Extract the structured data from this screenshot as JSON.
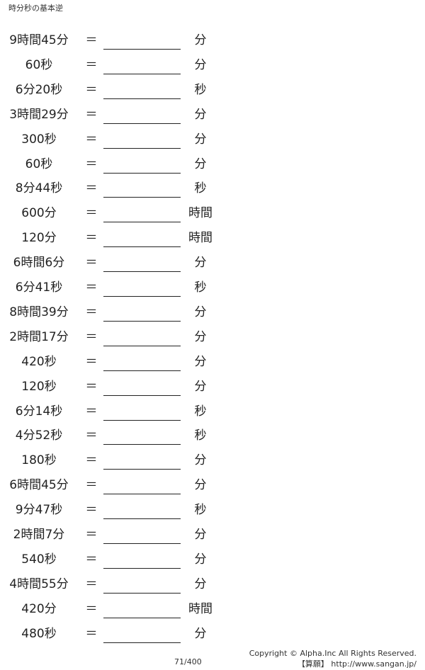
{
  "title": "時分秒の基本逆",
  "equals": "＝",
  "problems": [
    {
      "q": "9時間45分",
      "unit": "分"
    },
    {
      "q": "60秒",
      "unit": "分"
    },
    {
      "q": "6分20秒",
      "unit": "秒"
    },
    {
      "q": "3時間29分",
      "unit": "分"
    },
    {
      "q": "300秒",
      "unit": "分"
    },
    {
      "q": "60秒",
      "unit": "分"
    },
    {
      "q": "8分44秒",
      "unit": "秒"
    },
    {
      "q": "600分",
      "unit": "時間"
    },
    {
      "q": "120分",
      "unit": "時間"
    },
    {
      "q": "6時間6分",
      "unit": "分"
    },
    {
      "q": "6分41秒",
      "unit": "秒"
    },
    {
      "q": "8時間39分",
      "unit": "分"
    },
    {
      "q": "2時間17分",
      "unit": "分"
    },
    {
      "q": "420秒",
      "unit": "分"
    },
    {
      "q": "120秒",
      "unit": "分"
    },
    {
      "q": "6分14秒",
      "unit": "秒"
    },
    {
      "q": "4分52秒",
      "unit": "秒"
    },
    {
      "q": "180秒",
      "unit": "分"
    },
    {
      "q": "6時間45分",
      "unit": "分"
    },
    {
      "q": "9分47秒",
      "unit": "秒"
    },
    {
      "q": "2時間7分",
      "unit": "分"
    },
    {
      "q": "540秒",
      "unit": "分"
    },
    {
      "q": "4時間55分",
      "unit": "分"
    },
    {
      "q": "420分",
      "unit": "時間"
    },
    {
      "q": "480秒",
      "unit": "分"
    }
  ],
  "footer": {
    "page": "71/400",
    "copyright": "Copyright © Alpha.Inc All Rights Reserved.",
    "site": "【算願】 http://www.sangan.jp/"
  }
}
